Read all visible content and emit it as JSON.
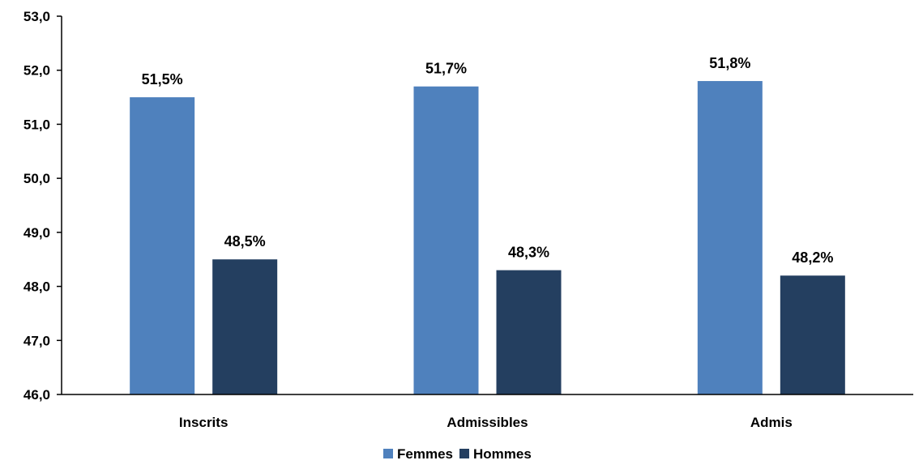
{
  "chart_data": {
    "type": "bar",
    "categories": [
      "Inscrits",
      "Admissibles",
      "Admis"
    ],
    "series": [
      {
        "name": "Femmes",
        "values": [
          51.5,
          51.7,
          51.8
        ],
        "labels": [
          "51,5%",
          "51,7%",
          "51,8%"
        ],
        "color": "#4f81bd"
      },
      {
        "name": "Hommes",
        "values": [
          48.5,
          48.3,
          48.2
        ],
        "labels": [
          "48,5%",
          "48,3%",
          "48,2%"
        ],
        "color": "#243f60"
      }
    ],
    "ylim": [
      46,
      53
    ],
    "yticks": [
      "46,0",
      "47,0",
      "48,0",
      "49,0",
      "50,0",
      "51,0",
      "52,0",
      "53,0"
    ],
    "legend_position": "bottom",
    "grid": false
  }
}
